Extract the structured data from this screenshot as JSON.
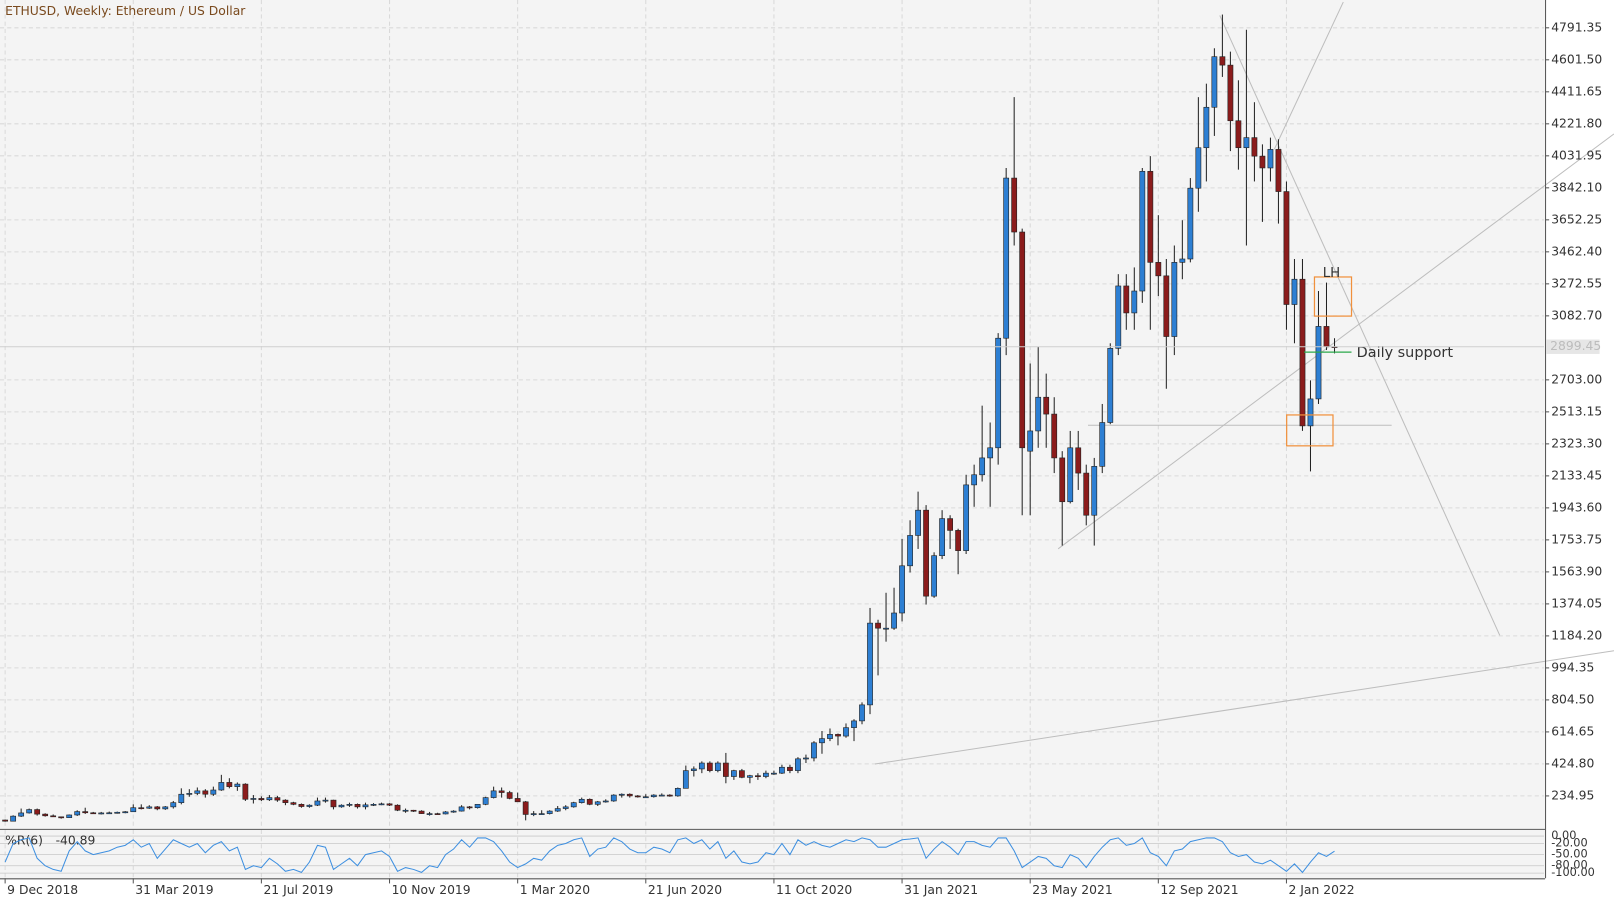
{
  "chart_data": {
    "type": "candlestick",
    "title": "ETHUSD, Weekly:  Ethereum / US Dollar",
    "annotations": [
      "LH",
      "Daily support"
    ],
    "bull_color": "#2d7fd3",
    "bear_color": "#8b1c1c",
    "grid": true,
    "ylim": [
      39.5,
      4956.3
    ],
    "yticks": [
      {
        "value": 234.95,
        "label": "234.95"
      },
      {
        "value": 424.8,
        "label": "424.80"
      },
      {
        "value": 614.65,
        "label": "614.65"
      },
      {
        "value": 804.5,
        "label": "804.50"
      },
      {
        "value": 994.35,
        "label": "994.35"
      },
      {
        "value": 1184.2,
        "label": "1184.20"
      },
      {
        "value": 1374.05,
        "label": "1374.05"
      },
      {
        "value": 1563.9,
        "label": "1563.90"
      },
      {
        "value": 1753.75,
        "label": "1753.75"
      },
      {
        "value": 1943.6,
        "label": "1943.60"
      },
      {
        "value": 2133.45,
        "label": "2133.45"
      },
      {
        "value": 2323.3,
        "label": "2323.30"
      },
      {
        "value": 2513.15,
        "label": "2513.15"
      },
      {
        "value": 2703,
        "label": "2703.00"
      },
      {
        "value": 3082.7,
        "label": "3082.70"
      },
      {
        "value": 3272.55,
        "label": "3272.55"
      },
      {
        "value": 3462.4,
        "label": "3462.40"
      },
      {
        "value": 3652.25,
        "label": "3652.25"
      },
      {
        "value": 3842.1,
        "label": "3842.10"
      },
      {
        "value": 4031.95,
        "label": "4031.95"
      },
      {
        "value": 4221.8,
        "label": "4221.80"
      },
      {
        "value": 4411.65,
        "label": "4411.65"
      },
      {
        "value": 4601.5,
        "label": "4601.50"
      },
      {
        "value": 4791.35,
        "label": "4791.35"
      }
    ],
    "xlim": [
      -0.64,
      192.16
    ],
    "xticks": [
      {
        "value": 0,
        "label": "9 Dec 2018"
      },
      {
        "value": 16,
        "label": "31 Mar 2019"
      },
      {
        "value": 32,
        "label": "21 Jul 2019"
      },
      {
        "value": 48,
        "label": "10 Nov 2019"
      },
      {
        "value": 64,
        "label": "1 Mar 2020"
      },
      {
        "value": 80,
        "label": "21 Jun 2020"
      },
      {
        "value": 96,
        "label": "11 Oct 2020"
      },
      {
        "value": 112,
        "label": "31 Jan 2021"
      },
      {
        "value": 128,
        "label": "23 May 2021"
      },
      {
        "value": 144,
        "label": "12 Sep 2021"
      },
      {
        "value": 160,
        "label": "2 Jan 2022"
      }
    ],
    "ohlc": [
      [
        92,
        95,
        82,
        85
      ],
      [
        85,
        120,
        84,
        115
      ],
      [
        115,
        160,
        110,
        134
      ],
      [
        134,
        160,
        130,
        154
      ],
      [
        154,
        160,
        118,
        127
      ],
      [
        127,
        132,
        112,
        117
      ],
      [
        117,
        125,
        110,
        111
      ],
      [
        111,
        113,
        100,
        106
      ],
      [
        106,
        125,
        104,
        122
      ],
      [
        122,
        150,
        116,
        142
      ],
      [
        142,
        165,
        128,
        135
      ],
      [
        135,
        140,
        130,
        132
      ],
      [
        132,
        140,
        125,
        134
      ],
      [
        134,
        142,
        130,
        135
      ],
      [
        135,
        142,
        130,
        138
      ],
      [
        138,
        145,
        132,
        141
      ],
      [
        141,
        185,
        140,
        165
      ],
      [
        165,
        185,
        155,
        162
      ],
      [
        162,
        180,
        158,
        170
      ],
      [
        170,
        175,
        150,
        158
      ],
      [
        158,
        175,
        152,
        170
      ],
      [
        170,
        205,
        160,
        195
      ],
      [
        195,
        280,
        185,
        245
      ],
      [
        245,
        275,
        230,
        250
      ],
      [
        250,
        285,
        240,
        265
      ],
      [
        265,
        275,
        225,
        245
      ],
      [
        245,
        290,
        235,
        270
      ],
      [
        270,
        360,
        265,
        315
      ],
      [
        315,
        340,
        280,
        290
      ],
      [
        290,
        315,
        265,
        305
      ],
      [
        305,
        310,
        205,
        215
      ],
      [
        215,
        240,
        190,
        220
      ],
      [
        220,
        232,
        205,
        212
      ],
      [
        212,
        240,
        205,
        225
      ],
      [
        225,
        235,
        200,
        210
      ],
      [
        210,
        215,
        180,
        195
      ],
      [
        195,
        200,
        180,
        185
      ],
      [
        185,
        190,
        165,
        172
      ],
      [
        172,
        185,
        165,
        180
      ],
      [
        180,
        225,
        175,
        205
      ],
      [
        205,
        225,
        195,
        210
      ],
      [
        210,
        212,
        155,
        170
      ],
      [
        170,
        185,
        165,
        180
      ],
      [
        180,
        195,
        170,
        185
      ],
      [
        185,
        190,
        160,
        170
      ],
      [
        170,
        195,
        155,
        182
      ],
      [
        182,
        192,
        175,
        185
      ],
      [
        185,
        195,
        180,
        188
      ],
      [
        188,
        192,
        175,
        180
      ],
      [
        180,
        185,
        145,
        150
      ],
      [
        150,
        160,
        135,
        150
      ],
      [
        150,
        152,
        140,
        145
      ],
      [
        145,
        150,
        128,
        130
      ],
      [
        130,
        140,
        118,
        130
      ],
      [
        130,
        135,
        125,
        128
      ],
      [
        128,
        145,
        125,
        140
      ],
      [
        140,
        150,
        135,
        145
      ],
      [
        145,
        180,
        142,
        170
      ],
      [
        170,
        175,
        155,
        165
      ],
      [
        165,
        185,
        160,
        185
      ],
      [
        185,
        230,
        180,
        225
      ],
      [
        225,
        290,
        220,
        265
      ],
      [
        265,
        285,
        225,
        255
      ],
      [
        255,
        265,
        215,
        220
      ],
      [
        220,
        255,
        200,
        200
      ],
      [
        200,
        205,
        90,
        125
      ],
      [
        125,
        145,
        115,
        130
      ],
      [
        130,
        150,
        125,
        130
      ],
      [
        130,
        150,
        125,
        145
      ],
      [
        145,
        175,
        140,
        160
      ],
      [
        160,
        180,
        150,
        170
      ],
      [
        170,
        200,
        165,
        195
      ],
      [
        195,
        225,
        190,
        215
      ],
      [
        215,
        220,
        180,
        185
      ],
      [
        185,
        205,
        175,
        200
      ],
      [
        200,
        215,
        195,
        205
      ],
      [
        205,
        245,
        200,
        240
      ],
      [
        240,
        250,
        225,
        245
      ],
      [
        245,
        250,
        225,
        235
      ],
      [
        235,
        240,
        225,
        230
      ],
      [
        230,
        245,
        225,
        230
      ],
      [
        230,
        245,
        225,
        240
      ],
      [
        240,
        250,
        235,
        240
      ],
      [
        240,
        245,
        230,
        235
      ],
      [
        235,
        285,
        230,
        280
      ],
      [
        280,
        415,
        280,
        385
      ],
      [
        385,
        410,
        350,
        395
      ],
      [
        395,
        440,
        370,
        430
      ],
      [
        430,
        440,
        375,
        385
      ],
      [
        385,
        440,
        375,
        430
      ],
      [
        430,
        490,
        310,
        350
      ],
      [
        350,
        390,
        330,
        385
      ],
      [
        385,
        395,
        340,
        345
      ],
      [
        345,
        360,
        310,
        355
      ],
      [
        355,
        370,
        330,
        350
      ],
      [
        350,
        385,
        340,
        370
      ],
      [
        370,
        385,
        360,
        370
      ],
      [
        370,
        420,
        365,
        405
      ],
      [
        405,
        420,
        370,
        385
      ],
      [
        385,
        465,
        370,
        455
      ],
      [
        455,
        480,
        430,
        460
      ],
      [
        460,
        560,
        440,
        550
      ],
      [
        550,
        620,
        485,
        575
      ],
      [
        575,
        635,
        560,
        600
      ],
      [
        600,
        605,
        535,
        590
      ],
      [
        590,
        665,
        580,
        640
      ],
      [
        640,
        690,
        560,
        680
      ],
      [
        680,
        790,
        660,
        775
      ],
      [
        775,
        1350,
        720,
        1260
      ],
      [
        1260,
        1280,
        950,
        1230
      ],
      [
        1230,
        1440,
        1150,
        1230
      ],
      [
        1230,
        1470,
        1220,
        1320
      ],
      [
        1320,
        1760,
        1270,
        1600
      ],
      [
        1600,
        1870,
        1560,
        1780
      ],
      [
        1780,
        2040,
        1700,
        1930
      ],
      [
        1930,
        1960,
        1370,
        1420
      ],
      [
        1420,
        1680,
        1410,
        1660
      ],
      [
        1660,
        1930,
        1640,
        1880
      ],
      [
        1880,
        1900,
        1700,
        1810
      ],
      [
        1810,
        1820,
        1550,
        1690
      ],
      [
        1690,
        2140,
        1670,
        2080
      ],
      [
        2080,
        2200,
        1950,
        2140
      ],
      [
        2140,
        2550,
        2100,
        2240
      ],
      [
        2240,
        2450,
        1950,
        2300
      ],
      [
        2300,
        2980,
        2200,
        2950
      ],
      [
        2950,
        3960,
        2850,
        3900
      ],
      [
        3900,
        4380,
        3500,
        3580
      ],
      [
        3580,
        3600,
        1900,
        2300
      ],
      [
        2280,
        2800,
        1900,
        2400
      ],
      [
        2400,
        2900,
        2300,
        2600
      ],
      [
        2600,
        2740,
        2300,
        2500
      ],
      [
        2500,
        2600,
        2150,
        2240
      ],
      [
        2240,
        2280,
        1720,
        1980
      ],
      [
        1980,
        2400,
        1970,
        2300
      ],
      [
        2300,
        2400,
        2050,
        2150
      ],
      [
        2150,
        2200,
        1840,
        1900
      ],
      [
        1900,
        2240,
        1720,
        2190
      ],
      [
        2190,
        2560,
        2150,
        2450
      ],
      [
        2450,
        2920,
        2440,
        2890
      ],
      [
        2890,
        3330,
        2850,
        3260
      ],
      [
        3260,
        3330,
        3000,
        3100
      ],
      [
        3100,
        3370,
        3000,
        3230
      ],
      [
        3230,
        3960,
        3160,
        3940
      ],
      [
        3940,
        4030,
        3000,
        3400
      ],
      [
        3400,
        3680,
        3200,
        3320
      ],
      [
        3320,
        3420,
        2650,
        2960
      ],
      [
        2960,
        3500,
        2850,
        3400
      ],
      [
        3400,
        3650,
        3300,
        3420
      ],
      [
        3420,
        3900,
        3400,
        3840
      ],
      [
        3840,
        4380,
        3700,
        4080
      ],
      [
        4080,
        4460,
        3880,
        4320
      ],
      [
        4320,
        4670,
        4150,
        4620
      ],
      [
        4620,
        4870,
        4500,
        4570
      ],
      [
        4570,
        4650,
        4060,
        4240
      ],
      [
        4240,
        4480,
        3950,
        4080
      ],
      [
        4080,
        4780,
        3500,
        4140
      ],
      [
        4140,
        4350,
        3880,
        4030
      ],
      [
        4030,
        4100,
        3640,
        3960
      ],
      [
        3960,
        4140,
        3880,
        4070
      ],
      [
        4070,
        4130,
        3630,
        3820
      ],
      [
        3820,
        3880,
        3000,
        3150
      ],
      [
        3150,
        3420,
        2920,
        3300
      ],
      [
        3300,
        3420,
        2400,
        2430
      ],
      [
        2430,
        2700,
        2160,
        2590
      ],
      [
        2590,
        3230,
        2560,
        3020
      ],
      [
        3020,
        3280,
        2880,
        2900
      ],
      [
        2900,
        2950,
        2860,
        2899.45
      ]
    ],
    "indicator": {
      "name": "%R(6)",
      "color": "#3d8fe0",
      "ylim": [
        -100,
        0
      ],
      "yticks": [
        {
          "value": 0,
          "label": "0.00"
        },
        {
          "value": -20,
          "label": "-20.00"
        },
        {
          "value": -50,
          "label": "-50.00"
        },
        {
          "value": -80,
          "label": "-80.00"
        },
        {
          "value": -100,
          "label": "-100.00"
        }
      ],
      "values": [
        -70,
        -20,
        -10,
        -5,
        -60,
        -80,
        -90,
        -95,
        -40,
        -15,
        -40,
        -50,
        -45,
        -40,
        -30,
        -25,
        -10,
        -30,
        -20,
        -60,
        -35,
        -10,
        -20,
        -30,
        -20,
        -45,
        -25,
        -15,
        -40,
        -30,
        -90,
        -80,
        -85,
        -60,
        -75,
        -95,
        -90,
        -98,
        -70,
        -25,
        -30,
        -90,
        -75,
        -60,
        -80,
        -50,
        -45,
        -40,
        -55,
        -95,
        -85,
        -90,
        -98,
        -80,
        -85,
        -50,
        -35,
        -10,
        -30,
        -5,
        -5,
        -15,
        -40,
        -70,
        -85,
        -75,
        -60,
        -65,
        -40,
        -25,
        -20,
        -10,
        -5,
        -55,
        -35,
        -30,
        -5,
        -15,
        -35,
        -45,
        -45,
        -30,
        -35,
        -45,
        -10,
        -5,
        -20,
        -10,
        -35,
        -15,
        -60,
        -40,
        -70,
        -75,
        -70,
        -45,
        -50,
        -20,
        -50,
        -10,
        -25,
        -15,
        -25,
        -30,
        -20,
        -10,
        -15,
        -5,
        -10,
        -30,
        -30,
        -20,
        -10,
        -8,
        -5,
        -60,
        -35,
        -15,
        -30,
        -50,
        -15,
        -15,
        -25,
        -30,
        -5,
        -5,
        -40,
        -85,
        -70,
        -55,
        -60,
        -80,
        -85,
        -50,
        -60,
        -85,
        -55,
        -30,
        -10,
        -5,
        -25,
        -20,
        -5,
        -45,
        -55,
        -80,
        -40,
        -35,
        -15,
        -10,
        -5,
        -5,
        -15,
        -45,
        -55,
        -50,
        -70,
        -75,
        -65,
        -80,
        -95,
        -75,
        -98,
        -70,
        -45,
        -55,
        -40.89
      ]
    }
  }
}
